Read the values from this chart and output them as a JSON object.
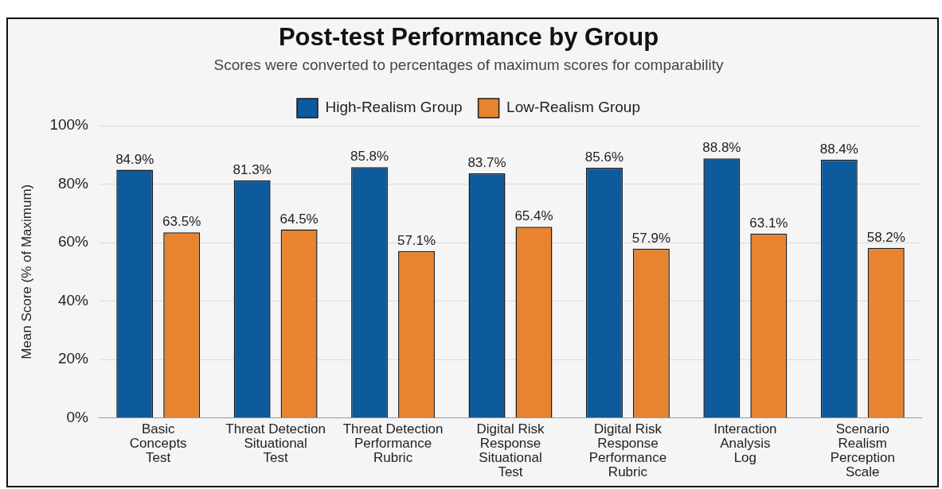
{
  "chart_data": {
    "type": "bar",
    "title": "Post-test Performance by Group",
    "subtitle": "Scores were converted to percentages of maximum scores for comparability",
    "ylabel": "Mean Score (% of Maximum)",
    "categories": [
      "Basic\nConcepts\nTest",
      "Threat Detection\nSituational\nTest",
      "Threat Detection\nPerformance\nRubric",
      "Digital Risk\nResponse\nSituational\nTest",
      "Digital Risk\nResponse\nPerformance\nRubric",
      "Interaction\nAnalysis\nLog",
      "Scenario\nRealism\nPerception\nScale"
    ],
    "series": [
      {
        "name": "High-Realism Group",
        "color": "#0d5a9c",
        "values": [
          84.9,
          81.3,
          85.8,
          83.7,
          85.6,
          88.8,
          88.4
        ],
        "value_labels": [
          "84.9%",
          "81.3%",
          "85.8%",
          "83.7%",
          "85.6%",
          "88.8%",
          "88.4%"
        ]
      },
      {
        "name": "Low-Realism Group",
        "color": "#e8842f",
        "values": [
          63.5,
          64.5,
          57.1,
          65.4,
          57.9,
          63.1,
          58.2
        ],
        "value_labels": [
          "63.5%",
          "64.5%",
          "57.1%",
          "65.4%",
          "57.9%",
          "63.1%",
          "58.2%"
        ]
      }
    ],
    "ylim": [
      0,
      100
    ],
    "yticks": [
      {
        "value": 0,
        "label": "0%"
      },
      {
        "value": 20,
        "label": "20%"
      },
      {
        "value": 40,
        "label": "40%"
      },
      {
        "value": 60,
        "label": "60%"
      },
      {
        "value": 80,
        "label": "80%"
      },
      {
        "value": 100,
        "label": "100%"
      }
    ],
    "grid": "y",
    "legend": "top"
  }
}
